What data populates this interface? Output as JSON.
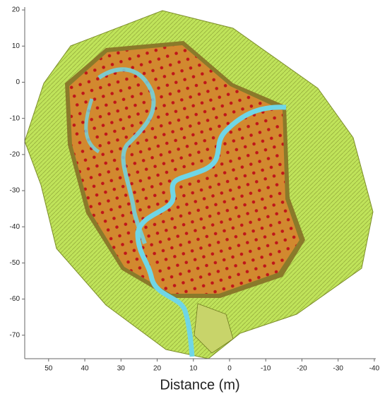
{
  "chart_data": {
    "type": "map",
    "x_label": "Distance (m)",
    "xlim": [
      56.6,
      -40.4
    ],
    "xticks": [
      50,
      40,
      30,
      20,
      10,
      0,
      -10,
      -20,
      -30,
      -40
    ],
    "ylim": [
      -76.5,
      20.8
    ],
    "yticks": [
      20,
      10,
      0,
      -10,
      -20,
      -30,
      -40,
      -50,
      -60,
      -70
    ]
  }
}
